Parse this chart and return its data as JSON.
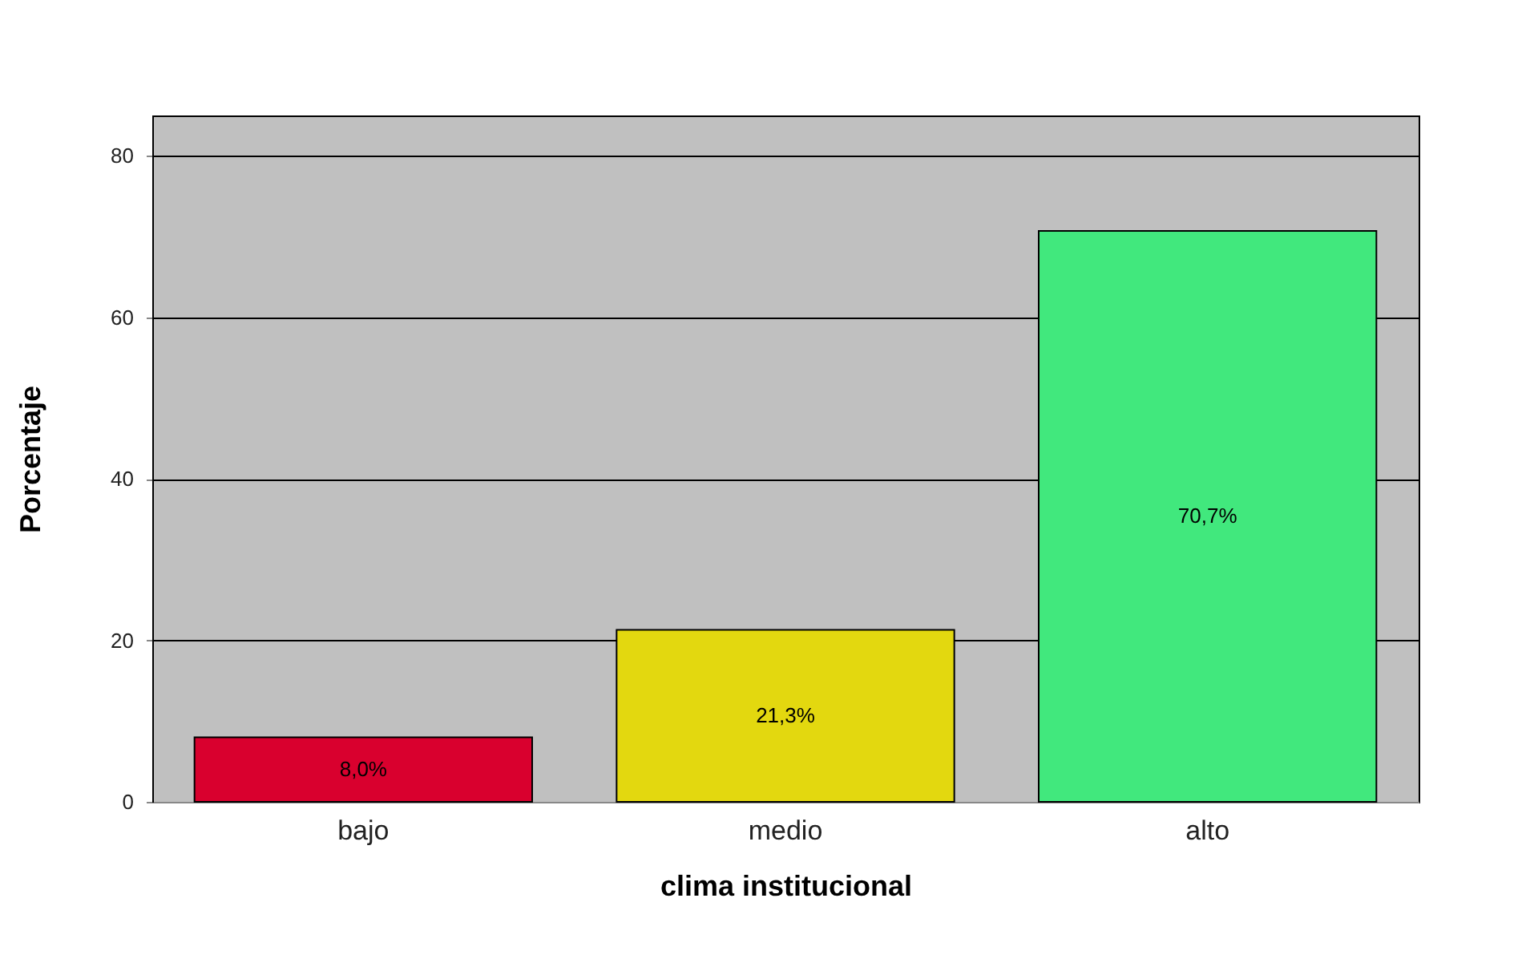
{
  "chart_data": {
    "type": "bar",
    "xlabel": "clima institucional",
    "ylabel": "Porcentaje",
    "categories": [
      "bajo",
      "medio",
      "alto"
    ],
    "values": [
      8.0,
      21.3,
      70.7
    ],
    "colors": [
      "#d9002e",
      "#e3d80f",
      "#41e87d"
    ],
    "value_labels": [
      "8,0%",
      "21,3%",
      "70,7%"
    ],
    "ylim": [
      0,
      85
    ],
    "yticks": [
      0,
      20,
      40,
      60,
      80
    ],
    "grid": "y"
  }
}
